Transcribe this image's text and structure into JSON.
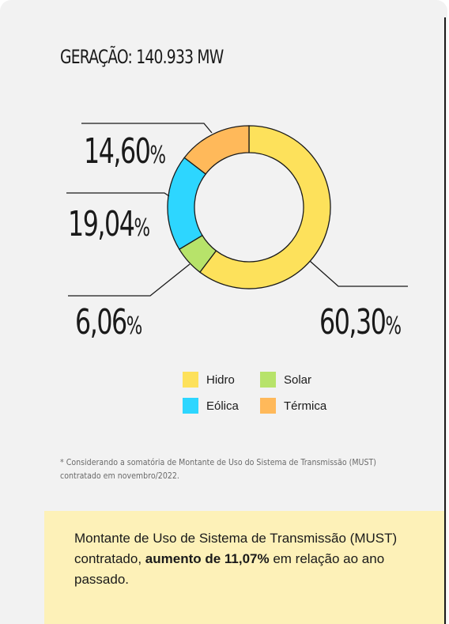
{
  "title": "GERAÇÃO: 140.933 MW",
  "chart_data": {
    "type": "pie",
    "title": "GERAÇÃO: 140.933 MW",
    "categories": [
      "Hidro",
      "Solar",
      "Eólica",
      "Térmica"
    ],
    "values": [
      60.3,
      6.06,
      19.04,
      14.6
    ],
    "value_labels": [
      "60,30",
      "6,06",
      "19,04",
      "14,60"
    ],
    "unit": "%",
    "colors": [
      "#fde15b",
      "#b7e36a",
      "#2dd6ff",
      "#ffb95a"
    ],
    "legend": [
      {
        "label": "Hidro",
        "color": "#fde15b"
      },
      {
        "label": "Solar",
        "color": "#b7e36a"
      },
      {
        "label": "Eólica",
        "color": "#2dd6ff"
      },
      {
        "label": "Térmica",
        "color": "#ffb95a"
      }
    ]
  },
  "footnote": "* Considerando a somatória de Montante de Uso do Sistema de Transmissão (MUST) contratado em novembro/2022.",
  "callout": {
    "text_before": "Montante de Uso de Sistema de Transmissão (MUST) contratado, ",
    "text_bold": "aumento de 11,07%",
    "text_after": " em relação ao ano passado."
  }
}
